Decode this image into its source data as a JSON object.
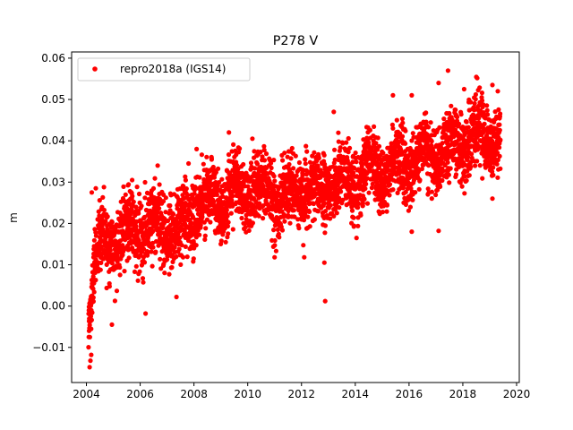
{
  "chart_data": {
    "type": "scatter",
    "title": "P278 V",
    "xlabel": "",
    "ylabel": "m",
    "xlim": [
      2003.45,
      2020.1
    ],
    "ylim": [
      -0.0185,
      0.0615
    ],
    "xticks": [
      2004,
      2006,
      2008,
      2010,
      2012,
      2014,
      2016,
      2018,
      2020
    ],
    "xtick_labels": [
      "2004",
      "2006",
      "2008",
      "2010",
      "2012",
      "2014",
      "2016",
      "2018",
      "2020"
    ],
    "yticks": [
      -0.01,
      0.0,
      0.01,
      0.02,
      0.03,
      0.04,
      0.05,
      0.06
    ],
    "ytick_labels": [
      "−0.01",
      "0.00",
      "0.01",
      "0.02",
      "0.03",
      "0.04",
      "0.05",
      "0.06"
    ],
    "legend_position": "top-left",
    "grid": false,
    "series": [
      {
        "name": "repro2018a (IGS14)",
        "color": "#ff0000",
        "marker": "circle",
        "trend": {
          "x": [
            2004.08,
            2004.25,
            2004.6,
            2005.0,
            2005.5,
            2006.0,
            2006.5,
            2007.0,
            2007.5,
            2008.0,
            2008.5,
            2009.0,
            2009.5,
            2010.0,
            2010.5,
            2011.0,
            2011.5,
            2012.0,
            2012.5,
            2013.0,
            2013.5,
            2014.0,
            2014.5,
            2015.0,
            2015.5,
            2016.0,
            2016.5,
            2017.0,
            2017.5,
            2018.0,
            2018.5,
            2019.0,
            2019.4
          ],
          "y": [
            -0.002,
            0.008,
            0.015,
            0.016,
            0.018,
            0.019,
            0.02,
            0.019,
            0.018,
            0.024,
            0.025,
            0.026,
            0.028,
            0.028,
            0.028,
            0.027,
            0.026,
            0.029,
            0.028,
            0.03,
            0.029,
            0.031,
            0.032,
            0.033,
            0.034,
            0.034,
            0.036,
            0.037,
            0.038,
            0.04,
            0.041,
            0.041,
            0.04
          ]
        },
        "extra_points": [
          {
            "x": 2004.12,
            "y": -0.0148
          },
          {
            "x": 2004.15,
            "y": -0.0132
          },
          {
            "x": 2004.18,
            "y": -0.0118
          },
          {
            "x": 2004.1,
            "y": -0.006
          },
          {
            "x": 2004.2,
            "y": 0.0275
          },
          {
            "x": 2004.35,
            "y": 0.0285
          },
          {
            "x": 2004.95,
            "y": -0.0045
          },
          {
            "x": 2005.7,
            "y": 0.0305
          },
          {
            "x": 2006.2,
            "y": -0.0018
          },
          {
            "x": 2006.65,
            "y": 0.034
          },
          {
            "x": 2007.35,
            "y": 0.0022
          },
          {
            "x": 2007.8,
            "y": 0.0345
          },
          {
            "x": 2008.1,
            "y": 0.038
          },
          {
            "x": 2009.3,
            "y": 0.042
          },
          {
            "x": 2011.0,
            "y": 0.0118
          },
          {
            "x": 2012.1,
            "y": 0.0118
          },
          {
            "x": 2012.88,
            "y": 0.0012
          },
          {
            "x": 2012.85,
            "y": 0.0105
          },
          {
            "x": 2013.2,
            "y": 0.047
          },
          {
            "x": 2015.4,
            "y": 0.051
          },
          {
            "x": 2016.1,
            "y": 0.051
          },
          {
            "x": 2016.1,
            "y": 0.018
          },
          {
            "x": 2017.1,
            "y": 0.0182
          },
          {
            "x": 2017.45,
            "y": 0.057
          },
          {
            "x": 2017.1,
            "y": 0.054
          },
          {
            "x": 2018.05,
            "y": 0.0525
          },
          {
            "x": 2018.7,
            "y": 0.0505
          },
          {
            "x": 2019.1,
            "y": 0.0535
          },
          {
            "x": 2019.1,
            "y": 0.026
          },
          {
            "x": 2019.3,
            "y": 0.052
          }
        ]
      }
    ]
  }
}
